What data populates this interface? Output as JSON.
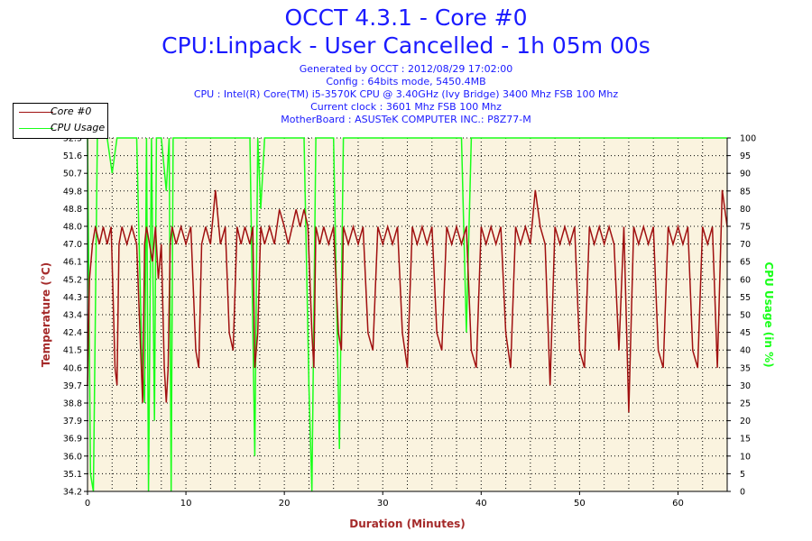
{
  "header": {
    "title": "OCCT 4.3.1 - Core #0",
    "subtitle": "CPU:Linpack - User Cancelled - 1h 05m 00s",
    "generated": "Generated by OCCT : 2012/08/29 17:02:00",
    "config": "Config : 64bits mode, 5450.4MB",
    "cpu": "CPU : Intel(R) Core(TM) i5-3570K CPU @ 3.40GHz (Ivy Bridge) 3400 Mhz FSB 100 Mhz",
    "clock": "Current clock : 3601 Mhz FSB 100 Mhz",
    "motherboard": "MotherBoard : ASUSTeK COMPUTER INC.: P8Z77-M"
  },
  "colors": {
    "background": "#faf3df",
    "temperature": "#a01010",
    "usage": "#1aff1a",
    "title": "#1a1aff",
    "left_axis_title": "#a52a2a",
    "right_axis_title": "#1aff1a"
  },
  "chart_data": {
    "type": "line",
    "title": "OCCT 4.3.1 - Core #0",
    "xlabel": "Duration (Minutes)",
    "ylabel": "Temperature (°C)",
    "y2label": "CPU Usage (in %)",
    "xlim": [
      0,
      65
    ],
    "xticks": [
      "0",
      "10",
      "20",
      "30",
      "40",
      "50",
      "60"
    ],
    "xtick_values": [
      0,
      10,
      20,
      30,
      40,
      50,
      60
    ],
    "ylim": [
      34.2,
      52.5
    ],
    "yticks": [
      "34.2",
      "35.1",
      "36.0",
      "36.9",
      "37.9",
      "38.8",
      "39.7",
      "40.6",
      "41.5",
      "42.4",
      "43.4",
      "44.3",
      "45.2",
      "46.1",
      "47.0",
      "48.0",
      "48.8",
      "49.8",
      "50.7",
      "51.6",
      "52.5"
    ],
    "y2lim": [
      0,
      100
    ],
    "y2ticks": [
      "0",
      "5",
      "10",
      "15",
      "20",
      "25",
      "30",
      "35",
      "40",
      "45",
      "50",
      "55",
      "60",
      "65",
      "70",
      "75",
      "80",
      "85",
      "90",
      "95",
      "100"
    ],
    "grid": true,
    "legend_position": "top-left",
    "series": [
      {
        "name": "Core #0",
        "axis": "left",
        "x": [
          0,
          0.2,
          0.5,
          0.8,
          1.2,
          1.6,
          2.0,
          2.4,
          2.8,
          3.0,
          3.2,
          3.5,
          4.0,
          4.5,
          5.0,
          5.4,
          5.6,
          5.8,
          6.0,
          6.3,
          6.6,
          6.9,
          7.2,
          7.5,
          7.8,
          8.0,
          8.2,
          8.4,
          8.6,
          9.0,
          9.5,
          10.0,
          10.5,
          11.0,
          11.3,
          11.6,
          12.0,
          12.5,
          13.0,
          13.5,
          14.0,
          14.4,
          14.8,
          15.2,
          15.6,
          16.0,
          16.5,
          16.8,
          17.0,
          17.3,
          17.6,
          18.0,
          18.5,
          19.0,
          19.5,
          20.0,
          20.4,
          20.8,
          21.2,
          21.6,
          22.0,
          22.4,
          22.8,
          23.0,
          23.2,
          23.6,
          24.0,
          24.5,
          25.0,
          25.5,
          25.8,
          26.0,
          26.5,
          27.0,
          27.5,
          28.0,
          28.5,
          29.0,
          29.5,
          30.0,
          30.5,
          31.0,
          31.5,
          32.0,
          32.5,
          33.0,
          33.5,
          34.0,
          34.5,
          35.0,
          35.5,
          36.0,
          36.5,
          37.0,
          37.5,
          38.0,
          38.5,
          39.0,
          39.5,
          40.0,
          40.5,
          41.0,
          41.5,
          42.0,
          42.5,
          43.0,
          43.5,
          44.0,
          44.5,
          45.0,
          45.5,
          46.0,
          46.5,
          47.0,
          47.5,
          48.0,
          48.5,
          49.0,
          49.5,
          50.0,
          50.5,
          51.0,
          51.5,
          52.0,
          52.5,
          53.0,
          53.5,
          54.0,
          54.5,
          55.0,
          55.5,
          56.0,
          56.5,
          57.0,
          57.5,
          58.0,
          58.5,
          59.0,
          59.5,
          60.0,
          60.5,
          61.0,
          61.5,
          62.0,
          62.5,
          63.0,
          63.5,
          64.0,
          64.5,
          65.0
        ],
        "values": [
          39.7,
          45.2,
          47.0,
          47.9,
          47.0,
          47.9,
          47.0,
          47.9,
          40.6,
          39.7,
          47.0,
          47.9,
          47.0,
          47.9,
          47.0,
          41.5,
          38.8,
          47.0,
          47.9,
          47.0,
          46.1,
          47.9,
          45.2,
          47.0,
          40.6,
          38.8,
          40.6,
          47.0,
          47.9,
          47.0,
          47.9,
          47.0,
          47.9,
          41.5,
          40.6,
          47.0,
          47.9,
          47.0,
          49.8,
          47.0,
          47.9,
          42.4,
          41.5,
          47.9,
          47.0,
          47.9,
          47.0,
          47.9,
          40.6,
          42.4,
          47.9,
          47.0,
          47.9,
          47.0,
          48.8,
          47.9,
          47.0,
          47.9,
          48.8,
          47.9,
          48.8,
          47.9,
          42.4,
          40.6,
          47.9,
          47.0,
          47.9,
          47.0,
          47.9,
          42.4,
          41.5,
          47.9,
          47.0,
          47.9,
          47.0,
          47.9,
          42.4,
          41.5,
          47.9,
          47.0,
          47.9,
          47.0,
          47.9,
          42.4,
          40.6,
          47.9,
          47.0,
          47.9,
          47.0,
          47.9,
          42.4,
          41.5,
          47.9,
          47.0,
          47.9,
          47.0,
          47.9,
          41.5,
          40.6,
          47.9,
          47.0,
          47.9,
          47.0,
          47.9,
          42.4,
          40.6,
          47.9,
          47.0,
          47.9,
          47.0,
          49.8,
          47.9,
          47.0,
          39.7,
          47.9,
          47.0,
          47.9,
          47.0,
          47.9,
          41.5,
          40.6,
          47.9,
          47.0,
          47.9,
          47.0,
          47.9,
          47.0,
          41.5,
          47.9,
          38.3,
          47.9,
          47.0,
          47.9,
          47.0,
          47.9,
          41.5,
          40.6,
          47.9,
          47.0,
          47.9,
          47.0,
          47.9,
          41.5,
          40.6,
          47.9,
          47.0,
          47.9,
          40.6,
          49.8,
          47.9
        ]
      },
      {
        "name": "CPU Usage",
        "axis": "right",
        "x": [
          0,
          0.3,
          0.6,
          1.0,
          2.0,
          2.5,
          3.0,
          4.0,
          5.0,
          5.5,
          5.8,
          6.0,
          6.2,
          6.5,
          6.8,
          7.0,
          7.5,
          8.0,
          8.3,
          8.5,
          8.7,
          9.0,
          10.0,
          11.0,
          12.0,
          13.0,
          14.0,
          15.0,
          16.0,
          16.5,
          17.0,
          17.3,
          17.6,
          18.0,
          19.0,
          20.0,
          21.0,
          22.0,
          22.5,
          22.8,
          23.2,
          23.6,
          24.0,
          25.0,
          25.6,
          26.0,
          27.0,
          28.0,
          29.0,
          30.0,
          31.0,
          32.0,
          33.0,
          34.0,
          35.0,
          36.0,
          37.0,
          38.0,
          38.5,
          39.0,
          40.0,
          41.0,
          42.0,
          43.0,
          44.0,
          45.0,
          46.0,
          47.0,
          48.0,
          49.0,
          50.0,
          51.0,
          52.0,
          53.0,
          54.0,
          55.0,
          56.0,
          57.0,
          58.0,
          59.0,
          60.0,
          61.0,
          62.0,
          63.0,
          64.0,
          65.0
        ],
        "values": [
          100,
          5,
          0,
          100,
          100,
          90,
          100,
          100,
          100,
          40,
          25,
          100,
          0,
          100,
          20,
          100,
          100,
          85,
          100,
          0,
          100,
          100,
          100,
          100,
          100,
          100,
          100,
          100,
          100,
          100,
          10,
          100,
          80,
          100,
          100,
          100,
          100,
          100,
          30,
          0,
          100,
          100,
          100,
          100,
          12,
          100,
          100,
          100,
          100,
          100,
          100,
          100,
          100,
          100,
          100,
          100,
          100,
          100,
          45,
          100,
          100,
          100,
          100,
          100,
          100,
          100,
          100,
          100,
          100,
          100,
          100,
          100,
          100,
          100,
          100,
          100,
          100,
          100,
          100,
          100,
          100,
          100,
          100,
          100,
          100,
          100
        ]
      }
    ]
  }
}
